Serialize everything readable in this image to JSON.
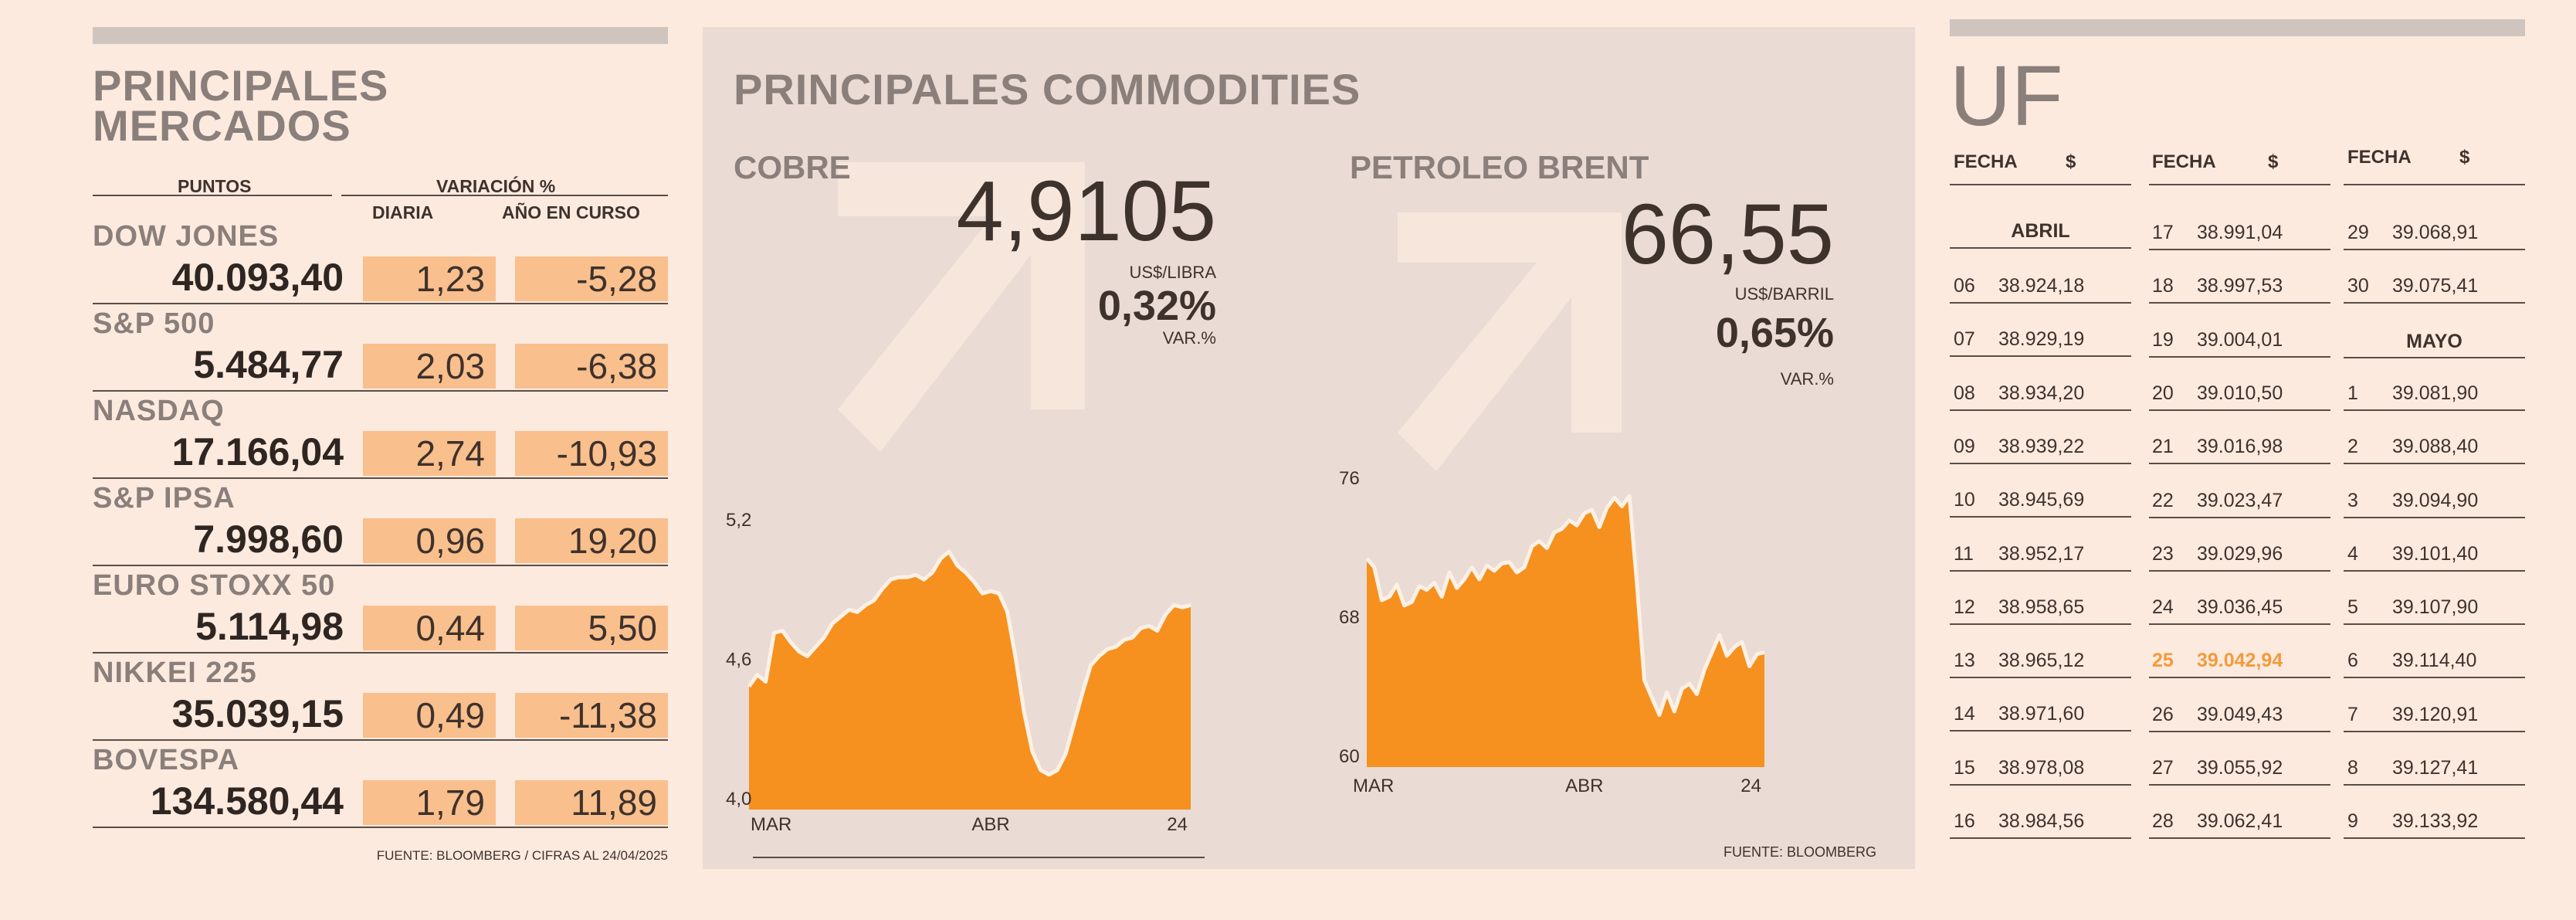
{
  "markets": {
    "title_line1": "PRINCIPALES",
    "title_line2": "MERCADOS",
    "col_points": "PUNTOS",
    "col_variation": "VARIACIÓN %",
    "col_daily": "DIARIA",
    "col_ytd": "AÑO EN CURSO",
    "rows": [
      {
        "name": "DOW JONES",
        "value": "40.093,40",
        "daily": "1,23",
        "ytd": "-5,28"
      },
      {
        "name": "S&P 500",
        "value": "5.484,77",
        "daily": "2,03",
        "ytd": "-6,38"
      },
      {
        "name": "NASDAQ",
        "value": "17.166,04",
        "daily": "2,74",
        "ytd": "-10,93"
      },
      {
        "name": "S&P IPSA",
        "value": "7.998,60",
        "daily": "0,96",
        "ytd": "19,20"
      },
      {
        "name": "EURO STOXX 50",
        "value": "5.114,98",
        "daily": "0,44",
        "ytd": "5,50"
      },
      {
        "name": "NIKKEI 225",
        "value": "35.039,15",
        "daily": "0,49",
        "ytd": "-11,38"
      },
      {
        "name": "BOVESPA",
        "value": "134.580,44",
        "daily": "1,79",
        "ytd": "11,89"
      }
    ],
    "footer": "FUENTE: BLOOMBERG  / CIFRAS AL 24/04/2025"
  },
  "commodities": {
    "title": "PRINCIPALES   COMMODITIES",
    "footer": "FUENTE: BLOOMBERG",
    "colors": {
      "fill": "#f6901e",
      "line": "#fdf1e6",
      "arrow": "#f7e6dc",
      "panel": "#eadbd4"
    },
    "cobre": {
      "label": "COBRE",
      "price": "4,9105",
      "unit": "US$/LIBRA",
      "change": "0,32%",
      "change_label": "VAR.%"
    },
    "brent": {
      "label": "PETROLEO BRENT",
      "price": "66,55",
      "unit": "US$/BARRIL",
      "change": "0,65%",
      "change_label": "VAR.%"
    }
  },
  "chart_data": [
    {
      "type": "area",
      "title": "COBRE",
      "ylim": [
        4.0,
        5.2
      ],
      "yticks": [
        "4,0",
        "4,6",
        "5,2"
      ],
      "xticks": [
        "MAR",
        "ABR",
        "24"
      ],
      "xtick_index": [
        0,
        29,
        53
      ],
      "grid": false,
      "values": [
        4.53,
        4.58,
        4.55,
        4.76,
        4.77,
        4.72,
        4.68,
        4.66,
        4.7,
        4.74,
        4.8,
        4.83,
        4.86,
        4.85,
        4.88,
        4.9,
        4.95,
        4.99,
        5.0,
        5.0,
        5.01,
        4.99,
        5.02,
        5.08,
        5.11,
        5.05,
        5.02,
        4.98,
        4.93,
        4.94,
        4.93,
        4.85,
        4.65,
        4.42,
        4.25,
        4.17,
        4.15,
        4.17,
        4.24,
        4.37,
        4.5,
        4.62,
        4.66,
        4.69,
        4.7,
        4.73,
        4.74,
        4.78,
        4.79,
        4.77,
        4.84,
        4.88,
        4.87,
        4.88
      ]
    },
    {
      "type": "area",
      "title": "PETROLEO BRENT",
      "ylim": [
        60,
        76
      ],
      "yticks": [
        "60",
        "68",
        "76"
      ],
      "xticks": [
        "MAR",
        "ABR",
        "24"
      ],
      "xtick_index": [
        0,
        29,
        53
      ],
      "grid": false,
      "values": [
        72.0,
        71.5,
        69.6,
        69.8,
        70.5,
        69.3,
        69.5,
        70.4,
        70.2,
        70.6,
        69.8,
        71.2,
        70.3,
        70.8,
        71.5,
        70.8,
        71.6,
        71.3,
        71.7,
        71.8,
        71.2,
        71.5,
        72.7,
        73.0,
        72.6,
        73.5,
        73.7,
        74.2,
        73.9,
        74.6,
        74.8,
        73.8,
        74.9,
        75.5,
        75.0,
        75.6,
        70.6,
        65.0,
        64.0,
        63.0,
        64.3,
        63.2,
        64.5,
        64.8,
        64.2,
        65.6,
        66.6,
        67.6,
        66.4,
        66.9,
        67.2,
        65.8,
        66.5,
        66.6
      ]
    }
  ],
  "uf": {
    "title": "UF",
    "col_fecha": "FECHA",
    "col_peso": "$",
    "month_abril": "ABRIL",
    "month_mayo": "MAYO",
    "col1": [
      {
        "d": "06",
        "v": "38.924,18"
      },
      {
        "d": "07",
        "v": "38.929,19"
      },
      {
        "d": "08",
        "v": "38.934,20"
      },
      {
        "d": "09",
        "v": "38.939,22"
      },
      {
        "d": "10",
        "v": "38.945,69"
      },
      {
        "d": "11",
        "v": "38.952,17"
      },
      {
        "d": "12",
        "v": "38.958,65"
      },
      {
        "d": "13",
        "v": "38.965,12"
      },
      {
        "d": "14",
        "v": "38.971,60"
      },
      {
        "d": "15",
        "v": "38.978,08"
      },
      {
        "d": "16",
        "v": "38.984,56"
      }
    ],
    "col2": [
      {
        "d": "17",
        "v": "38.991,04"
      },
      {
        "d": "18",
        "v": "38.997,53"
      },
      {
        "d": "19",
        "v": "39.004,01"
      },
      {
        "d": "20",
        "v": "39.010,50"
      },
      {
        "d": "21",
        "v": "39.016,98"
      },
      {
        "d": "22",
        "v": "39.023,47"
      },
      {
        "d": "23",
        "v": "39.029,96"
      },
      {
        "d": "24",
        "v": "39.036,45"
      },
      {
        "d": "25",
        "v": "39.042,94"
      },
      {
        "d": "26",
        "v": "39.049,43"
      },
      {
        "d": "27",
        "v": "39.055,92"
      },
      {
        "d": "28",
        "v": "39.062,41"
      }
    ],
    "col3": [
      {
        "d": "29",
        "v": "39.068,91"
      },
      {
        "d": "30",
        "v": "39.075,41"
      },
      {
        "d": "1",
        "v": "39.081,90"
      },
      {
        "d": "2",
        "v": "39.088,40"
      },
      {
        "d": "3",
        "v": "39.094,90"
      },
      {
        "d": "4",
        "v": "39.101,40"
      },
      {
        "d": "5",
        "v": "39.107,90"
      },
      {
        "d": "6",
        "v": "39.114,40"
      },
      {
        "d": "7",
        "v": "39.120,91"
      },
      {
        "d": "8",
        "v": "39.127,41"
      },
      {
        "d": "9",
        "v": "39.133,92"
      }
    ],
    "highlight_color": "#f39a3c"
  }
}
